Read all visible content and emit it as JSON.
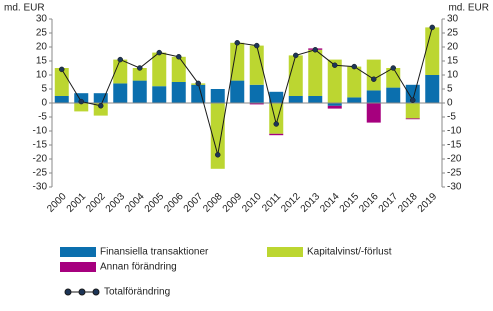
{
  "chart_data": {
    "type": "bar",
    "y_label": "md. EUR",
    "y2_label": "md. EUR",
    "categories": [
      "2000",
      "2001",
      "2002",
      "2003",
      "2004",
      "2005",
      "2006",
      "2007",
      "2008",
      "2009",
      "2010",
      "2011",
      "2012",
      "2013",
      "2014",
      "2015",
      "2016",
      "2017",
      "2018",
      "2019"
    ],
    "stacked": true,
    "series": [
      {
        "name": "Finansiella transaktioner",
        "color": "#0b6fae",
        "values": [
          2.5,
          3.5,
          3.5,
          7,
          8,
          6,
          7.5,
          6.5,
          5,
          8,
          6.5,
          4,
          2.5,
          2.5,
          -1,
          2,
          4.5,
          5.5,
          6.5,
          10
        ]
      },
      {
        "name": "Kapitalvinst/-förlust",
        "color": "#bcd631",
        "values": [
          10,
          -3,
          -4.5,
          8.5,
          4.5,
          12,
          9,
          0.5,
          -23.5,
          13.5,
          14,
          -11,
          14.5,
          16.5,
          15.5,
          11,
          11,
          7,
          -5.5,
          17
        ]
      },
      {
        "name": "Annan förändring",
        "color": "#a6007e",
        "values": [
          0,
          0,
          0,
          0,
          0,
          0,
          0,
          0,
          0,
          0,
          -0.5,
          -0.5,
          0,
          0.5,
          -1,
          0,
          -7,
          0,
          -0.3,
          0
        ]
      },
      {
        "name": "Totalförändring",
        "type": "line",
        "axis": "y2",
        "color": "#1a1a1a",
        "marker_color": "#1d3557",
        "values": [
          12,
          0.5,
          -1,
          15.5,
          12.5,
          18,
          16.5,
          7,
          -18.5,
          21.5,
          20.5,
          -7.5,
          17,
          19,
          13.5,
          13,
          8.5,
          12.5,
          1,
          27
        ]
      }
    ],
    "ylim": [
      -30,
      30
    ],
    "yticks": [
      -30,
      -25,
      -20,
      -15,
      -10,
      -5,
      0,
      5,
      10,
      15,
      20,
      25,
      30
    ],
    "y2lim": [
      -30,
      30
    ],
    "y2ticks": [
      -30,
      -25,
      -20,
      -15,
      -10,
      -5,
      0,
      5,
      10,
      15,
      20,
      25,
      30
    ],
    "grid": false
  }
}
